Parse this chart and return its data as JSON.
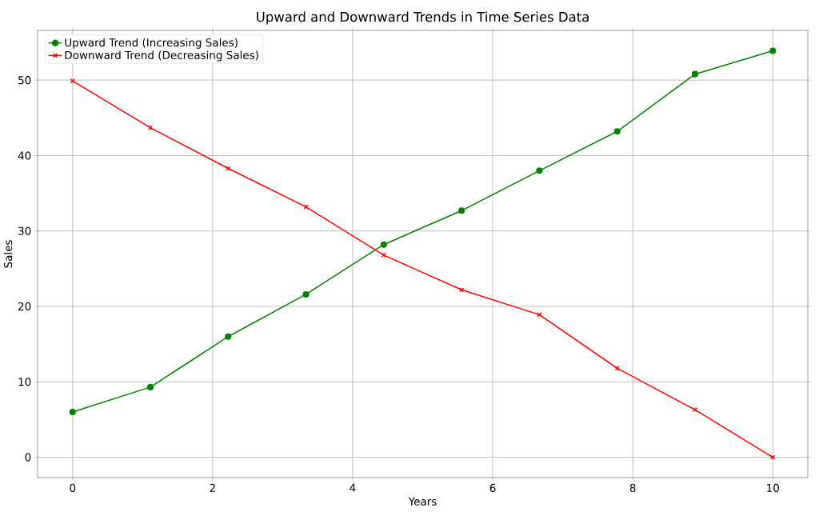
{
  "chart_data": {
    "type": "line",
    "title": "Upward and Downward Trends in Time Series Data",
    "xlabel": "Years",
    "ylabel": "Sales",
    "x": [
      0,
      1.111,
      2.222,
      3.333,
      4.444,
      5.556,
      6.667,
      7.778,
      8.889,
      10
    ],
    "series": [
      {
        "name": "Upward Trend (Increasing Sales)",
        "color": "#008000",
        "marker": "circle",
        "values": [
          6.0,
          9.3,
          16.0,
          21.6,
          28.2,
          32.7,
          38.0,
          43.2,
          50.8,
          53.9
        ]
      },
      {
        "name": "Downward Trend (Decreasing Sales)",
        "color": "#ff0000",
        "marker": "cross",
        "values": [
          49.9,
          43.7,
          38.3,
          33.2,
          26.8,
          22.2,
          18.9,
          11.8,
          6.3,
          0
        ]
      }
    ],
    "xlim": [
      -0.5,
      10.5
    ],
    "ylim": [
      -2.7,
      56.6
    ],
    "xticks": [
      0,
      2,
      4,
      6,
      8,
      10
    ],
    "yticks": [
      0,
      10,
      20,
      30,
      40,
      50
    ],
    "grid": true,
    "legend": "top left",
    "line_style": "solid"
  }
}
